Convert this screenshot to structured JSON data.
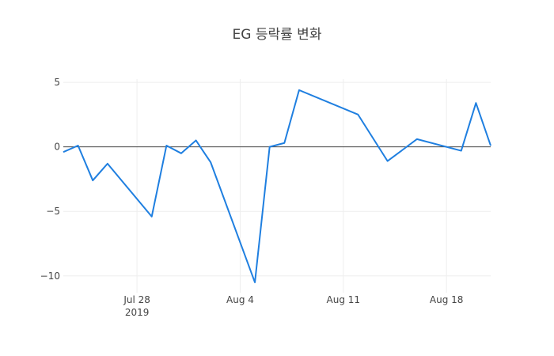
{
  "chart_data": {
    "type": "line",
    "title": "EG 등락률 변화",
    "x": [
      "2019-07-23",
      "2019-07-24",
      "2019-07-25",
      "2019-07-26",
      "2019-07-29",
      "2019-07-30",
      "2019-07-31",
      "2019-08-01",
      "2019-08-02",
      "2019-08-05",
      "2019-08-06",
      "2019-08-07",
      "2019-08-08",
      "2019-08-12",
      "2019-08-14",
      "2019-08-16",
      "2019-08-19",
      "2019-08-20",
      "2019-08-21"
    ],
    "series": [
      {
        "color": "#1f7fe0",
        "values": [
          -0.4,
          0.1,
          -2.6,
          -1.3,
          -5.4,
          0.1,
          -0.5,
          0.5,
          -1.2,
          -10.5,
          0,
          0.3,
          4.4,
          2.5,
          -1.1,
          0.6,
          -0.3,
          3.4,
          0.1
        ]
      }
    ],
    "xlim": [
      "2019-07-23",
      "2019-08-21"
    ],
    "xticks": [
      {
        "value": "2019-07-28",
        "label": "Jul 28\n2019"
      },
      {
        "value": "2019-08-04",
        "label": "Aug 4"
      },
      {
        "value": "2019-08-11",
        "label": "Aug 11"
      },
      {
        "value": "2019-08-18",
        "label": "Aug 18"
      }
    ],
    "ylim": [
      -11.3,
      5.25
    ],
    "yticks": [
      5,
      0,
      {
        "value": -5,
        "label": "−5"
      },
      {
        "value": -10,
        "label": "−10"
      }
    ],
    "grid": true,
    "zeroline": true
  }
}
